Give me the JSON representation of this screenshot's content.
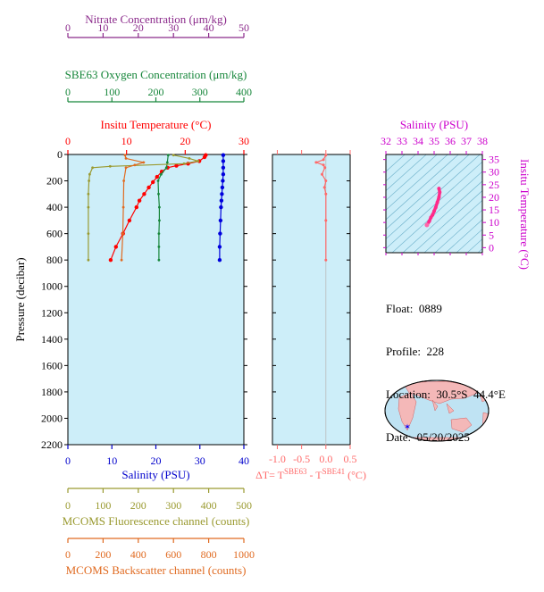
{
  "info": {
    "float": "Float:  0889",
    "profile": "Profile:  228",
    "location": "Location:  30.5°S  44.4°E",
    "date": "Date:  05/20/2025"
  },
  "chart_data": [
    {
      "type": "line",
      "ylabel": "Pressure (decibar)",
      "ylim": [
        2200,
        0
      ],
      "yticks": [
        "0",
        "200",
        "400",
        "600",
        "800",
        "1000",
        "1200",
        "1400",
        "1600",
        "1800",
        "2000",
        "2200"
      ],
      "axes": [
        {
          "label": "Nitrate Concentration (μm/kg)",
          "ticks": [
            "0",
            "10",
            "20",
            "30",
            "40",
            "50"
          ],
          "range": [
            0,
            50
          ],
          "color": "#8b2a8b",
          "position": "top-1"
        },
        {
          "label": "SBE63 Oxygen Concentration (μm/kg)",
          "ticks": [
            "0",
            "100",
            "200",
            "300",
            "400"
          ],
          "range": [
            0,
            400
          ],
          "color": "#16863a",
          "position": "top-2"
        },
        {
          "label": "Insitu Temperature (°C)",
          "ticks": [
            "0",
            "10",
            "20",
            "30"
          ],
          "range": [
            0,
            30
          ],
          "color": "#ff0000",
          "position": "top-3"
        },
        {
          "label": "Salinity (PSU)",
          "ticks": [
            "0",
            "10",
            "20",
            "30",
            "40"
          ],
          "range": [
            0,
            40
          ],
          "color": "#0000cc",
          "position": "bottom-1"
        },
        {
          "label": "MCOMS Fluorescence channel (counts)",
          "ticks": [
            "0",
            "100",
            "200",
            "300",
            "400",
            "500"
          ],
          "range": [
            0,
            500
          ],
          "color": "#9a9a30",
          "position": "bottom-2"
        },
        {
          "label": "MCOMS Backscatter channel (counts)",
          "ticks": [
            "0",
            "200",
            "400",
            "600",
            "800",
            "1000"
          ],
          "range": [
            0,
            1000
          ],
          "color": "#e06a20",
          "position": "bottom-3"
        }
      ],
      "series": [
        {
          "name": "Insitu Temperature",
          "axis": 2,
          "color": "#ff0000",
          "points": [
            [
              23.5,
              5
            ],
            [
              23.3,
              20
            ],
            [
              22.4,
              50
            ],
            [
              20.5,
              70
            ],
            [
              18.5,
              85
            ],
            [
              17.0,
              100
            ],
            [
              16.0,
              130
            ],
            [
              15.2,
              170
            ],
            [
              14.5,
              210
            ],
            [
              13.8,
              250
            ],
            [
              13.0,
              300
            ],
            [
              12.2,
              350
            ],
            [
              11.7,
              400
            ],
            [
              10.5,
              500
            ],
            [
              9.4,
              600
            ],
            [
              8.2,
              700
            ],
            [
              7.3,
              800
            ]
          ]
        },
        {
          "name": "Salinity",
          "axis": 3,
          "color": "#0000dd",
          "points": [
            [
              35.3,
              5
            ],
            [
              35.3,
              50
            ],
            [
              35.3,
              100
            ],
            [
              35.3,
              150
            ],
            [
              35.2,
              200
            ],
            [
              35.1,
              250
            ],
            [
              35.0,
              300
            ],
            [
              34.9,
              350
            ],
            [
              34.8,
              400
            ],
            [
              34.7,
              500
            ],
            [
              34.6,
              600
            ],
            [
              34.5,
              700
            ],
            [
              34.5,
              800
            ]
          ]
        },
        {
          "name": "Oxygen",
          "axis": 1,
          "color": "#16863a",
          "points": [
            [
              228,
              5
            ],
            [
              226,
              60
            ],
            [
              224,
              100
            ],
            [
              212,
              150
            ],
            [
              205,
              200
            ],
            [
              206,
              300
            ],
            [
              208,
              400
            ],
            [
              208,
              500
            ],
            [
              207,
              600
            ],
            [
              207,
              700
            ],
            [
              207,
              800
            ]
          ]
        },
        {
          "name": "Fluorescence",
          "axis": 4,
          "color": "#9a9a30",
          "points": [
            [
              300,
              5
            ],
            [
              345,
              30
            ],
            [
              370,
              50
            ],
            [
              330,
              70
            ],
            [
              120,
              90
            ],
            [
              70,
              100
            ],
            [
              62,
              150
            ],
            [
              60,
              200
            ],
            [
              58,
              300
            ],
            [
              58,
              400
            ],
            [
              58,
              600
            ],
            [
              58,
              800
            ]
          ]
        },
        {
          "name": "Backscatter",
          "axis": 5,
          "color": "#e06a20",
          "points": [
            [
              325,
              5
            ],
            [
              330,
              30
            ],
            [
              430,
              60
            ],
            [
              380,
              80
            ],
            [
              330,
              100
            ],
            [
              318,
              200
            ],
            [
              315,
              400
            ],
            [
              312,
              600
            ],
            [
              305,
              800
            ]
          ]
        }
      ]
    },
    {
      "type": "line",
      "xlabel": "ΔT= T^SBE63 - T^SBE41 (°C)",
      "xlabel_parts": {
        "prefix": "ΔT= T",
        "sup1": "SBE63",
        "mid": " - T",
        "sup2": "SBE41",
        "suffix": " (°C)"
      },
      "xticks": [
        "-1.0",
        "-0.5",
        "0.0",
        "0.5"
      ],
      "xlim": [
        -1.1,
        0.5
      ],
      "ylim": [
        2200,
        0
      ],
      "series": [
        {
          "name": "ΔT",
          "color": "#ff6a6a",
          "points": [
            [
              0.0,
              5
            ],
            [
              -0.05,
              40
            ],
            [
              -0.2,
              60
            ],
            [
              -0.05,
              80
            ],
            [
              -0.02,
              100
            ],
            [
              -0.08,
              150
            ],
            [
              0.0,
              200
            ],
            [
              -0.03,
              250
            ],
            [
              0.0,
              300
            ],
            [
              0.0,
              500
            ],
            [
              0.0,
              800
            ]
          ]
        }
      ]
    },
    {
      "type": "scatter",
      "title": "Salinity (PSU)",
      "xticks": [
        "32",
        "33",
        "34",
        "35",
        "36",
        "37",
        "38"
      ],
      "xlim": [
        32,
        38
      ],
      "ylabel": "Insitu Temperature (°C)",
      "yticks": [
        "0",
        "5",
        "10",
        "15",
        "20",
        "25",
        "30",
        "35"
      ],
      "ylim": [
        -2,
        37
      ],
      "series": [
        {
          "name": "T-S",
          "color": "#ff2a8a",
          "points": [
            [
              35.3,
              23.5
            ],
            [
              35.35,
              22
            ],
            [
              35.3,
              20
            ],
            [
              35.2,
              18
            ],
            [
              35.1,
              16
            ],
            [
              35.0,
              14.5
            ],
            [
              34.9,
              13
            ],
            [
              34.8,
              12
            ],
            [
              34.7,
              10.5
            ],
            [
              34.55,
              9
            ]
          ]
        }
      ]
    }
  ]
}
